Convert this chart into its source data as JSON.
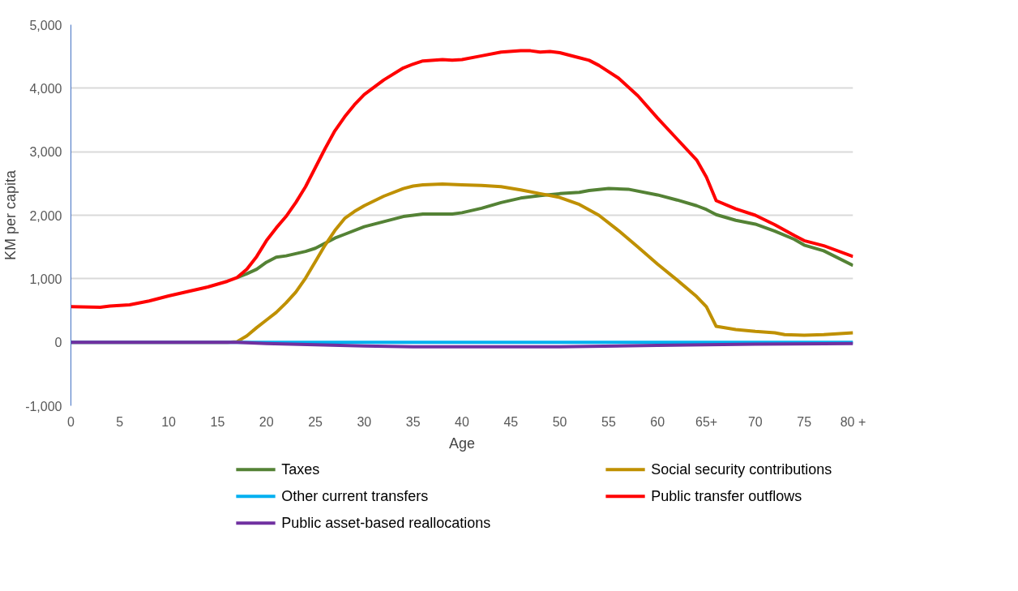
{
  "chart_data": {
    "type": "line",
    "xlabel": "Age",
    "ylabel": "KM per capita",
    "xlim": [
      0,
      80
    ],
    "xticks": [
      0,
      5,
      10,
      15,
      20,
      25,
      30,
      35,
      40,
      45,
      50,
      55,
      60,
      {
        "value": 65,
        "label": "65+"
      },
      70,
      75,
      {
        "value": 80,
        "label": "80 +"
      }
    ],
    "ylim": [
      -1000,
      5000
    ],
    "yticks": [
      {
        "value": -1000,
        "label": "-1,000"
      },
      0,
      {
        "value": 1000,
        "label": "1,000"
      },
      {
        "value": 2000,
        "label": "2,000"
      },
      {
        "value": 3000,
        "label": "3,000"
      },
      {
        "value": 4000,
        "label": "4,000"
      },
      {
        "value": 5000,
        "label": "5,000"
      }
    ],
    "grid": "y",
    "legend": "bottom",
    "marker": "none",
    "line_style": "solid",
    "series": [
      {
        "name": "Taxes",
        "color": "#548235",
        "x": [
          17,
          18,
          19,
          20,
          21,
          22,
          24,
          25,
          26,
          27,
          28,
          30,
          32,
          34,
          36,
          38,
          39,
          40,
          42,
          44,
          46,
          48,
          50,
          52,
          53,
          55,
          57,
          60,
          62,
          64,
          65,
          66,
          68,
          70,
          72,
          74,
          75,
          77,
          80
        ],
        "values": [
          1020,
          1080,
          1150,
          1260,
          1340,
          1360,
          1430,
          1480,
          1560,
          1640,
          1700,
          1820,
          1900,
          1980,
          2020,
          2020,
          2020,
          2040,
          2110,
          2200,
          2270,
          2310,
          2340,
          2360,
          2390,
          2420,
          2410,
          2320,
          2240,
          2150,
          2090,
          2010,
          1920,
          1860,
          1750,
          1620,
          1530,
          1440,
          1210
        ]
      },
      {
        "name": "Social security contributions",
        "color": "#bf9000",
        "x": [
          0,
          16,
          17,
          18,
          19,
          20,
          21,
          22,
          23,
          24,
          25,
          26,
          27,
          28,
          29,
          30,
          32,
          34,
          35,
          36,
          38,
          40,
          42,
          44,
          46,
          48,
          50,
          52,
          54,
          56,
          58,
          60,
          62,
          64,
          65,
          66,
          68,
          70,
          72,
          73,
          75,
          77,
          80
        ],
        "values": [
          0,
          0,
          10,
          100,
          230,
          350,
          470,
          620,
          790,
          1010,
          1270,
          1530,
          1760,
          1950,
          2060,
          2150,
          2300,
          2420,
          2460,
          2480,
          2490,
          2480,
          2470,
          2450,
          2400,
          2340,
          2280,
          2170,
          2000,
          1760,
          1500,
          1230,
          980,
          720,
          560,
          250,
          200,
          170,
          150,
          120,
          110,
          120,
          150
        ]
      },
      {
        "name": "Other current transfers",
        "color": "#00b0f0",
        "x": [
          0,
          80
        ],
        "values": [
          0,
          0
        ]
      },
      {
        "name": "Public transfer outflows",
        "color": "#ff0000",
        "x": [
          0,
          3,
          4,
          6,
          8,
          10,
          12,
          14,
          16,
          17,
          18,
          19,
          20,
          21,
          22,
          23,
          24,
          25,
          26,
          27,
          28,
          29,
          30,
          32,
          34,
          35,
          36,
          38,
          39,
          40,
          42,
          44,
          46,
          47,
          48,
          49,
          50,
          52,
          53,
          54,
          56,
          58,
          60,
          62,
          64,
          65,
          66,
          68,
          70,
          72,
          74,
          75,
          77,
          80
        ],
        "values": [
          560,
          550,
          570,
          590,
          650,
          730,
          800,
          870,
          960,
          1020,
          1150,
          1350,
          1600,
          1800,
          1980,
          2200,
          2450,
          2750,
          3050,
          3330,
          3550,
          3740,
          3900,
          4130,
          4320,
          4380,
          4430,
          4450,
          4440,
          4450,
          4510,
          4570,
          4590,
          4590,
          4570,
          4580,
          4560,
          4480,
          4440,
          4360,
          4160,
          3880,
          3530,
          3200,
          2870,
          2600,
          2230,
          2100,
          2000,
          1850,
          1680,
          1600,
          1520,
          1350
        ]
      },
      {
        "name": "Public asset-based reallocations",
        "color": "#7030a0",
        "x": [
          0,
          17,
          20,
          25,
          30,
          35,
          45,
          50,
          60,
          65,
          70,
          80
        ],
        "values": [
          0,
          0,
          -20,
          -40,
          -60,
          -70,
          -70,
          -70,
          -50,
          -40,
          -30,
          -20
        ]
      }
    ]
  }
}
